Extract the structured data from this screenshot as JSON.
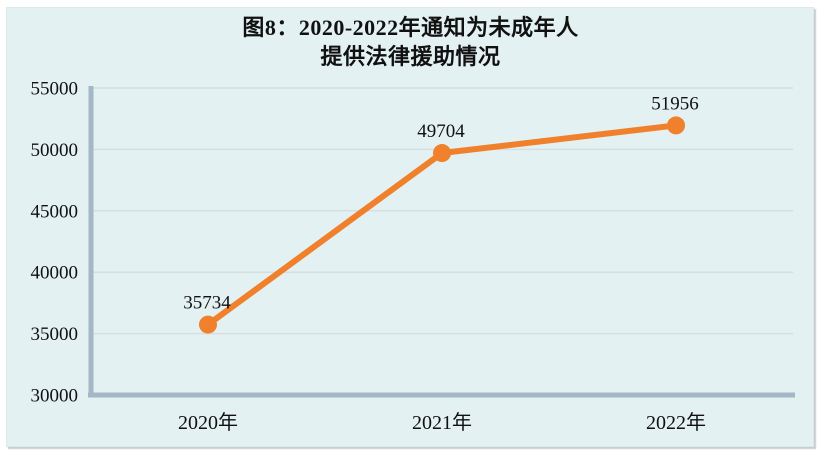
{
  "chart_data": {
    "type": "line",
    "title_lines": [
      "图8：2020-2022年通知为未成年人",
      "提供法律援助情况"
    ],
    "categories": [
      "2020年",
      "2021年",
      "2022年"
    ],
    "values": [
      35734,
      49704,
      51956
    ],
    "data_labels": [
      "35734",
      "49704",
      "51956"
    ],
    "yticks": [
      30000,
      35000,
      40000,
      45000,
      50000,
      55000
    ],
    "ytick_labels": [
      "30000",
      "35000",
      "40000",
      "45000",
      "50000",
      "55000"
    ],
    "ylim": [
      30000,
      55000
    ],
    "xlabel": "",
    "ylabel": "",
    "grid": true,
    "legend_position": "none",
    "colors": {
      "line": "#F0802C",
      "marker": "#F0802C",
      "axis": "#A3B7C7",
      "gridline": "#D8DDE0",
      "card_background": "#E3F1F2",
      "page_background": "#FFFFFF",
      "text": "#111111"
    }
  }
}
